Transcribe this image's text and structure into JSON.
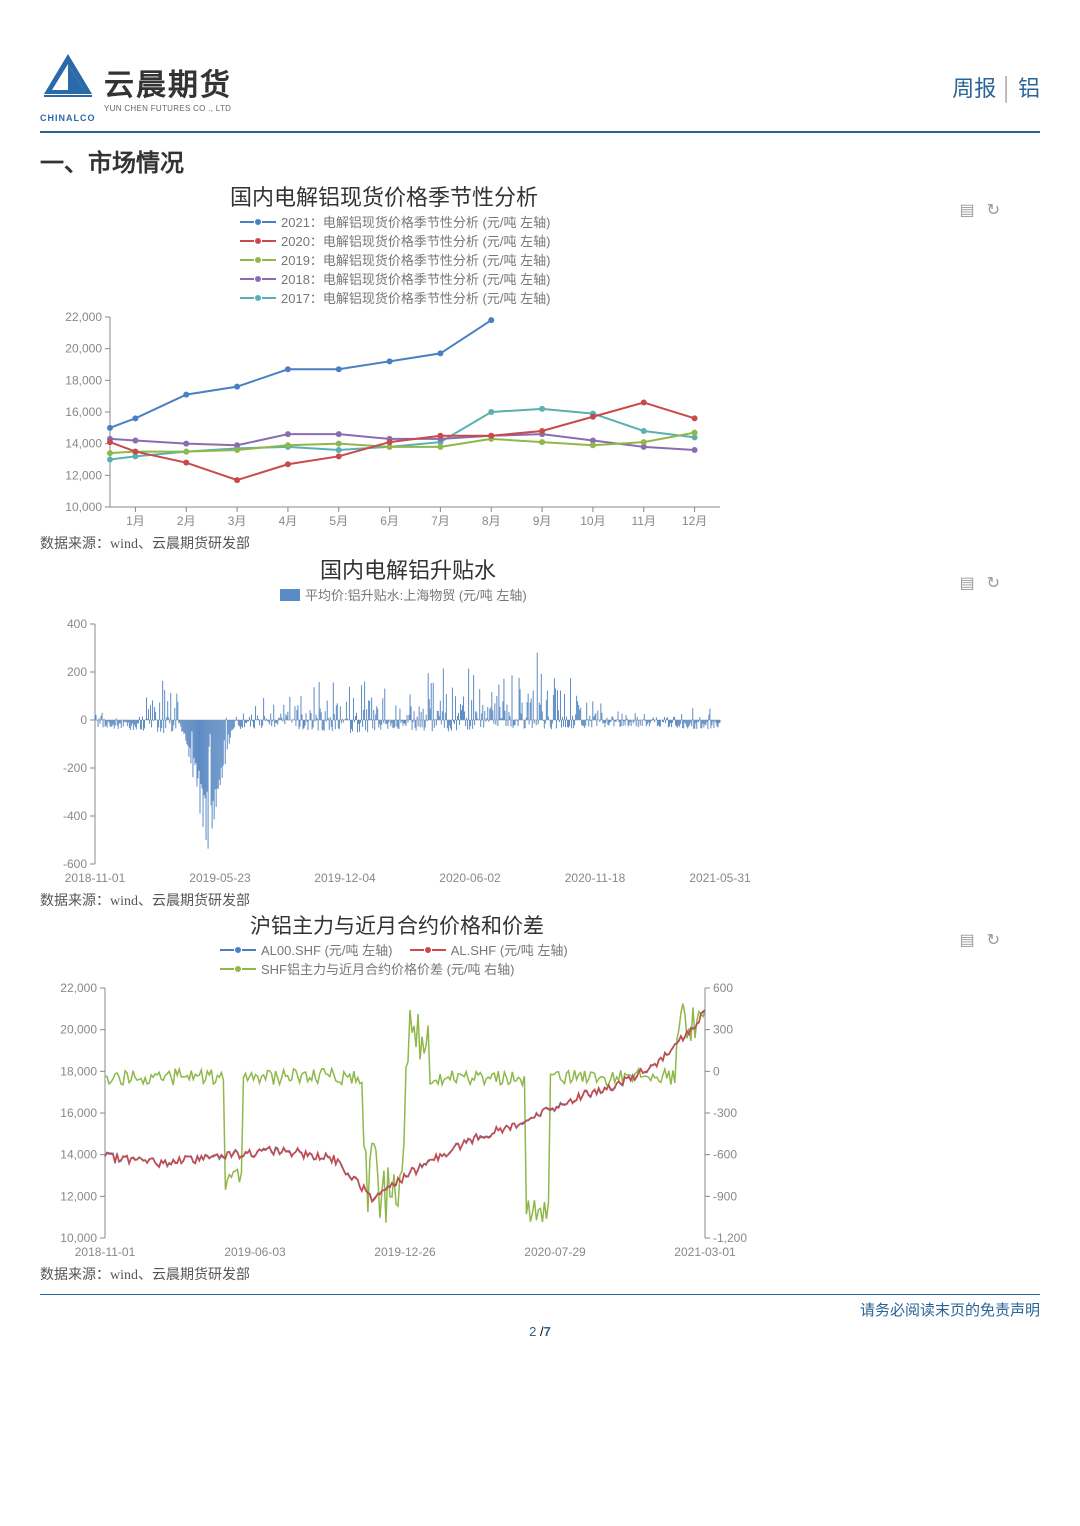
{
  "header": {
    "logo_main": "云晨期货",
    "logo_sub": "YUN CHEN FUTURES CO ., LTD",
    "chinalco": "CHINALCO",
    "report_type": "周报",
    "subject": "铝",
    "logo_color": "#2a6aa8"
  },
  "section_title": "一、市场情况",
  "source_note": "数据来源：wind、云晨期货研发部",
  "footer_note": "请务必阅读末页的免责声明",
  "page_current": "2",
  "page_total": "7",
  "page_sep": " /",
  "chart1": {
    "title": "国内电解铝现货价格季节性分析",
    "legend": [
      {
        "label": "2021：电解铝现货价格季节性分析 (元/吨 左轴)",
        "color": "#4a7fc4"
      },
      {
        "label": "2020：电解铝现货价格季节性分析 (元/吨 左轴)",
        "color": "#c94a4a"
      },
      {
        "label": "2019：电解铝现货价格季节性分析 (元/吨 左轴)",
        "color": "#8fb84a"
      },
      {
        "label": "2018：电解铝现货价格季节性分析 (元/吨 左轴)",
        "color": "#8a6db0"
      },
      {
        "label": "2017：电解铝现货价格季节性分析 (元/吨 左轴)",
        "color": "#5ab0b0"
      }
    ],
    "ylabels": [
      "22,000",
      "20,000",
      "18,000",
      "16,000",
      "14,000",
      "12,000",
      "10,000"
    ],
    "xlabels": [
      "1月",
      "2月",
      "3月",
      "4月",
      "5月",
      "6月",
      "7月",
      "8月",
      "9月",
      "10月",
      "11月",
      "12月"
    ],
    "ylim": [
      10000,
      22000
    ],
    "series": {
      "2021": [
        15000,
        15600,
        17100,
        17600,
        18700,
        18700,
        19200,
        19700,
        21800
      ],
      "2020": [
        14100,
        13500,
        12800,
        11700,
        12700,
        13200,
        14100,
        14500,
        14500,
        14800,
        15700,
        16600,
        15600
      ],
      "2019": [
        13400,
        13500,
        13500,
        13600,
        13900,
        14000,
        13800,
        13800,
        14300,
        14100,
        13900,
        14100,
        14700
      ],
      "2018": [
        14300,
        14200,
        14000,
        13900,
        14600,
        14600,
        14300,
        14300,
        14500,
        14600,
        14200,
        13800,
        13600
      ],
      "2017": [
        13000,
        13200,
        13500,
        13700,
        13800,
        13600,
        13800,
        14100,
        16000,
        16200,
        15900,
        14800,
        14400
      ]
    }
  },
  "chart2": {
    "title": "国内电解铝升贴水",
    "legend_label": "平均价:铝升贴水:上海物贸 (元/吨 左轴)",
    "legend_color": "#5b8bc4",
    "ylabels": [
      "400",
      "200",
      "0",
      "-200",
      "-400",
      "-600"
    ],
    "xlabels": [
      "2018-11-01",
      "2019-05-23",
      "2019-12-04",
      "2020-06-02",
      "2020-11-18",
      "2021-05-31"
    ],
    "ylim": [
      -600,
      400
    ]
  },
  "chart3": {
    "title": "沪铝主力与近月合约价格和价差",
    "legend": [
      {
        "label": "AL00.SHF (元/吨 左轴)",
        "color": "#4a7fc4"
      },
      {
        "label": "AL.SHF (元/吨 左轴)",
        "color": "#c94a4a"
      },
      {
        "label": "SHF铝主力与近月合约价格价差 (元/吨 右轴)",
        "color": "#8fb84a"
      }
    ],
    "ylabels_left": [
      "22,000",
      "20,000",
      "18,000",
      "16,000",
      "14,000",
      "12,000",
      "10,000"
    ],
    "ylabels_right": [
      "600",
      "300",
      "0",
      "-300",
      "-600",
      "-900",
      "-1,200"
    ],
    "xlabels": [
      "2018-11-01",
      "2019-06-03",
      "2019-12-26",
      "2020-07-29",
      "2021-03-01"
    ],
    "ylim_left": [
      10000,
      22000
    ],
    "ylim_right": [
      -1200,
      600
    ]
  },
  "colors": {
    "accent": "#2a6496",
    "axis": "#888888",
    "text_muted": "#777777",
    "bg": "#ffffff"
  }
}
